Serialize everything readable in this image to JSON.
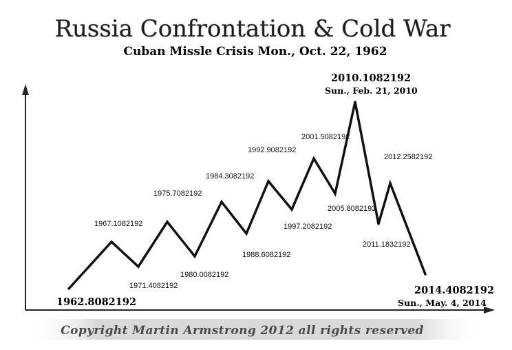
{
  "chart_data": {
    "type": "line",
    "title": "Russia Confrontation & Cold War",
    "subtitle": "Cuban Missle Crisis Mon., Oct. 22,  1962",
    "footer": "Copyright Martin Armstrong 2012 all rights reserved",
    "points": [
      {
        "label": "1962.8082192"
      },
      {
        "label": "1967.1082192"
      },
      {
        "label": "1971.4082192"
      },
      {
        "label": "1975.7082192"
      },
      {
        "label": "1980.0082192"
      },
      {
        "label": "1984.3082192"
      },
      {
        "label": "1988.6082192"
      },
      {
        "label": "1992.9082192"
      },
      {
        "label": "1997.2082192"
      },
      {
        "label": "2001.5082192"
      },
      {
        "label": "2005.8082192"
      },
      {
        "label": "2010.1082192",
        "date": "Sun., Feb. 21,  2010"
      },
      {
        "label": "2011.1832192"
      },
      {
        "label": "2012.2582192"
      },
      {
        "label": "2014.4082192",
        "date": "Sun., May.  4,  2014"
      }
    ]
  }
}
